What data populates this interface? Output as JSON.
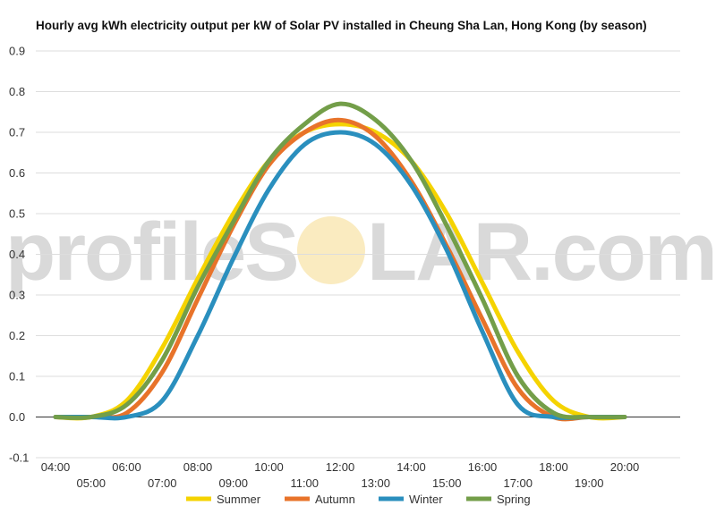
{
  "chart_data": {
    "type": "line",
    "title": "Hourly avg kWh electricity output per kW of Solar PV installed in Cheung Sha Lan, Hong Kong (by season)",
    "xlabel": "",
    "ylabel": "",
    "x": [
      "04:00",
      "05:00",
      "06:00",
      "07:00",
      "08:00",
      "09:00",
      "10:00",
      "11:00",
      "12:00",
      "13:00",
      "14:00",
      "15:00",
      "16:00",
      "17:00",
      "18:00",
      "19:00",
      "20:00"
    ],
    "ylim": [
      -0.1,
      0.9
    ],
    "yticks": [
      "-0.1",
      "0.0",
      "0.1",
      "0.2",
      "0.3",
      "0.4",
      "0.5",
      "0.6",
      "0.7",
      "0.8",
      "0.9"
    ],
    "grid": true,
    "legend_position": "bottom",
    "series": [
      {
        "name": "Summer",
        "color": "#f5d300",
        "values": [
          0.0,
          0.0,
          0.04,
          0.17,
          0.34,
          0.5,
          0.63,
          0.7,
          0.72,
          0.7,
          0.63,
          0.5,
          0.33,
          0.16,
          0.04,
          0.0,
          0.0
        ]
      },
      {
        "name": "Autumn",
        "color": "#e8732a",
        "values": [
          0.0,
          0.0,
          0.01,
          0.11,
          0.29,
          0.47,
          0.62,
          0.7,
          0.73,
          0.69,
          0.58,
          0.42,
          0.24,
          0.07,
          0.0,
          0.0,
          0.0
        ]
      },
      {
        "name": "Winter",
        "color": "#2a8fbe",
        "values": [
          0.0,
          0.0,
          0.0,
          0.04,
          0.2,
          0.39,
          0.56,
          0.67,
          0.7,
          0.67,
          0.57,
          0.41,
          0.21,
          0.03,
          0.0,
          0.0,
          0.0
        ]
      },
      {
        "name": "Spring",
        "color": "#739e49",
        "values": [
          0.0,
          0.0,
          0.03,
          0.14,
          0.32,
          0.48,
          0.63,
          0.72,
          0.77,
          0.73,
          0.63,
          0.47,
          0.29,
          0.1,
          0.01,
          0.0,
          0.0
        ]
      }
    ]
  },
  "watermark": {
    "text_left": "profileS",
    "text_right": "LAR.com",
    "sun_color": "#faebc0"
  }
}
